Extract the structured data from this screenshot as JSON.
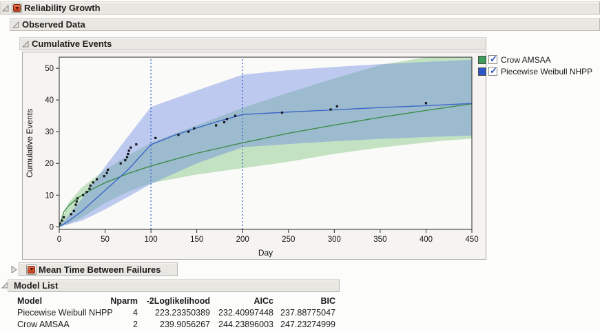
{
  "colors": {
    "bar_bg": "#e9e7e2",
    "crow_green": "#3e9d5a",
    "weibull_blue": "#2c55c8",
    "green_line": "#3c8c4a",
    "blue_line": "#3a66c8",
    "green_band": "rgba(118,193,118,0.42)",
    "blue_band": "rgba(104,133,224,0.42)",
    "changepoint_blue": "#3f6ad0",
    "point_color": "#17171f",
    "plot_bg": "#fafaf8"
  },
  "sections": {
    "reliability_growth": {
      "title": "Reliability Growth"
    },
    "observed_data": {
      "title": "Observed Data"
    },
    "cumulative_events": {
      "title": "Cumulative Events"
    },
    "mtbf": {
      "title": "Mean Time Between Failures"
    },
    "model_list": {
      "title": "Model List"
    }
  },
  "legend": {
    "items": [
      {
        "label": "Crow AMSAA",
        "color": "#3e9d5a",
        "checked": true
      },
      {
        "label": "Piecewise Weibull NHPP",
        "color": "#2c55c8",
        "checked": true
      }
    ]
  },
  "model_table": {
    "columns": [
      "Model",
      "Nparm",
      "-2Loglikelihood",
      "AICc",
      "BIC"
    ],
    "rows": [
      [
        "Piecewise Weibull NHPP",
        "4",
        "223.23350389",
        "232.40997448",
        "237.88775047"
      ],
      [
        "Crow AMSAA",
        "2",
        "239.9056267",
        "244.23896003",
        "247.23274999"
      ]
    ]
  },
  "chart_data": {
    "type": "line",
    "title": "Cumulative Events",
    "xlabel": "Day",
    "ylabel": "Cumulative Events",
    "xlim": [
      0,
      450
    ],
    "ylim": [
      -0.8,
      53.5
    ],
    "x_ticks": [
      0,
      50,
      100,
      150,
      200,
      250,
      300,
      350,
      400,
      450
    ],
    "y_ticks": [
      0,
      10,
      20,
      30,
      40,
      50
    ],
    "grid": false,
    "legend_position": "right-outside",
    "change_points": [
      100,
      200
    ],
    "series": [
      {
        "name": "Crow AMSAA",
        "x": [
          0,
          5,
          10,
          20,
          30,
          40,
          50,
          75,
          100,
          150,
          200,
          250,
          300,
          350,
          400,
          450
        ],
        "y": [
          0,
          4.7,
          6.6,
          9.1,
          10.9,
          12.5,
          13.9,
          16.8,
          19.2,
          23.2,
          26.5,
          29.5,
          32.1,
          34.5,
          36.7,
          38.8
        ],
        "band": {
          "x": [
            0,
            10,
            25,
            50,
            75,
            100,
            150,
            200,
            250,
            300,
            350,
            400,
            420,
            450
          ],
          "upper": [
            0,
            7.5,
            12.5,
            18,
            22.5,
            26.5,
            32,
            37.5,
            42.3,
            46.8,
            51,
            53.5,
            53.5,
            53.5
          ],
          "lower": [
            0,
            1,
            3,
            7.5,
            11,
            13.8,
            16.5,
            18.5,
            20.5,
            23,
            25,
            26.6,
            27.2,
            27.8
          ]
        }
      },
      {
        "name": "Piecewise Weibull NHPP",
        "x": [
          0,
          10,
          25,
          50,
          75,
          100,
          125,
          150,
          175,
          200,
          250,
          300,
          350,
          400,
          450
        ],
        "y": [
          0,
          1.8,
          5.0,
          11.5,
          18.0,
          25.9,
          28.8,
          31.2,
          33.4,
          35.4,
          36.2,
          36.9,
          37.6,
          38.2,
          38.9
        ],
        "band": {
          "x": [
            0,
            25,
            50,
            75,
            100,
            150,
            200,
            250,
            300,
            350,
            400,
            450
          ],
          "upper": [
            0,
            9,
            19,
            28.5,
            37.8,
            43,
            48,
            49.4,
            50.4,
            51.3,
            52,
            52.7
          ],
          "lower": [
            0,
            2,
            5.5,
            9.5,
            13.5,
            20,
            25.1,
            26.1,
            27,
            27.7,
            28.3,
            28.8
          ]
        }
      }
    ],
    "observations": [
      [
        1,
        1
      ],
      [
        3,
        2
      ],
      [
        5,
        3
      ],
      [
        13,
        4
      ],
      [
        16,
        5
      ],
      [
        18,
        7
      ],
      [
        19,
        8
      ],
      [
        20,
        9
      ],
      [
        26,
        10
      ],
      [
        30,
        11
      ],
      [
        33,
        12
      ],
      [
        34,
        13
      ],
      [
        37,
        14
      ],
      [
        41,
        15
      ],
      [
        49,
        16
      ],
      [
        52,
        17
      ],
      [
        53,
        18
      ],
      [
        67,
        20
      ],
      [
        72,
        21
      ],
      [
        74,
        22
      ],
      [
        75,
        23
      ],
      [
        76,
        24
      ],
      [
        78,
        25
      ],
      [
        84,
        26
      ],
      [
        105,
        28
      ],
      [
        130,
        29
      ],
      [
        141,
        30
      ],
      [
        147,
        31
      ],
      [
        171,
        32
      ],
      [
        180,
        33
      ],
      [
        183,
        34
      ],
      [
        192,
        35
      ],
      [
        243,
        36
      ],
      [
        296,
        37
      ],
      [
        303,
        38
      ],
      [
        400,
        39
      ]
    ]
  }
}
